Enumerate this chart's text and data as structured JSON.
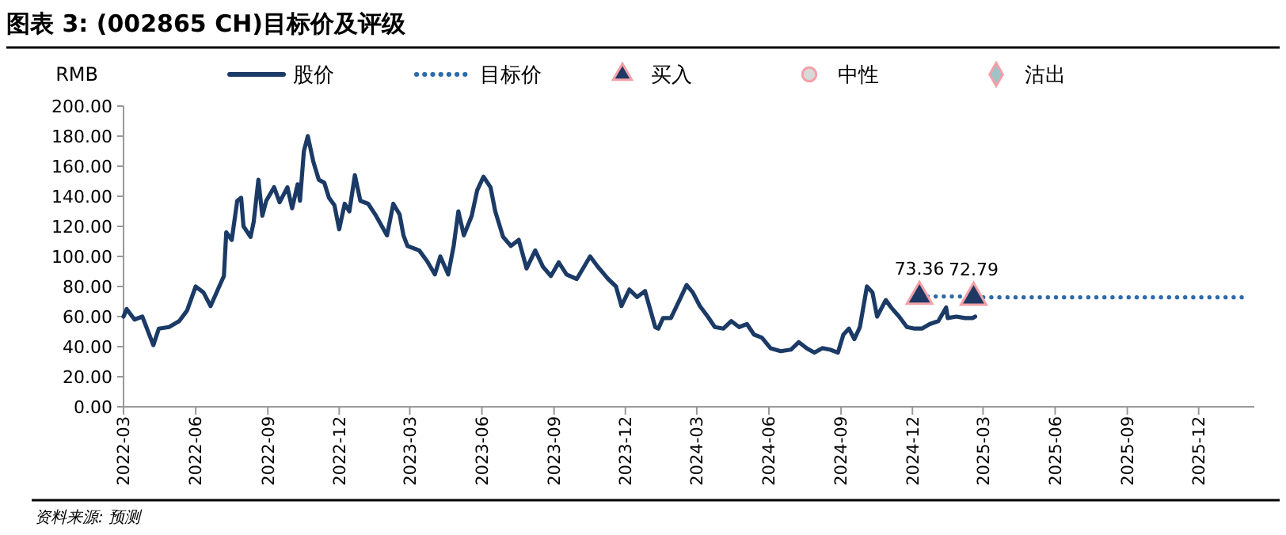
{
  "chart_data": {
    "type": "line",
    "title": "图表 3: (002865 CH)目标价及评级",
    "ylabel": "RMB",
    "annotations": [
      "资料来源: 预测"
    ],
    "xlim": [
      "2022-03-01",
      "2026-02-10"
    ],
    "xticks": [
      "2022-03",
      "2022-06",
      "2022-09",
      "2022-12",
      "2023-03",
      "2023-06",
      "2023-09",
      "2023-12",
      "2024-03",
      "2024-06",
      "2024-09",
      "2024-12",
      "2025-03",
      "2025-06",
      "2025-09",
      "2025-12"
    ],
    "ylim": [
      0,
      200
    ],
    "yticks": [
      {
        "value": 0,
        "label": "0.00"
      },
      {
        "value": 20,
        "label": "20.00"
      },
      {
        "value": 40,
        "label": "40.00"
      },
      {
        "value": 60,
        "label": "60.00"
      },
      {
        "value": 80,
        "label": "80.00"
      },
      {
        "value": 100,
        "label": "100.00"
      },
      {
        "value": 120,
        "label": "120.00"
      },
      {
        "value": 140,
        "label": "140.00"
      },
      {
        "value": 160,
        "label": "160.00"
      },
      {
        "value": 180,
        "label": "180.00"
      },
      {
        "value": 200,
        "label": "200.00"
      }
    ],
    "legend": "top",
    "grid": false,
    "series": [
      {
        "name": "股价",
        "color": "#1b3a66",
        "line_style": "solid",
        "x": [
          "2022-03-01",
          "2022-03-05",
          "2022-03-15",
          "2022-03-25",
          "2022-04-08",
          "2022-04-15",
          "2022-04-28",
          "2022-05-11",
          "2022-05-21",
          "2022-06-01",
          "2022-06-11",
          "2022-06-20",
          "2022-07-01",
          "2022-07-07",
          "2022-07-10",
          "2022-07-17",
          "2022-07-24",
          "2022-07-29",
          "2022-08-01",
          "2022-08-10",
          "2022-08-14",
          "2022-08-20",
          "2022-08-25",
          "2022-08-30",
          "2022-09-09",
          "2022-09-16",
          "2022-09-26",
          "2022-10-02",
          "2022-10-09",
          "2022-10-12",
          "2022-10-17",
          "2022-10-22",
          "2022-10-29",
          "2022-11-05",
          "2022-11-12",
          "2022-11-18",
          "2022-11-25",
          "2022-12-01",
          "2022-12-08",
          "2022-12-14",
          "2022-12-21",
          "2022-12-28",
          "2023-01-07",
          "2023-01-17",
          "2023-01-31",
          "2023-02-08",
          "2023-02-16",
          "2023-02-21",
          "2023-02-26",
          "2023-03-13",
          "2023-03-23",
          "2023-04-02",
          "2023-04-09",
          "2023-04-19",
          "2023-04-26",
          "2023-05-02",
          "2023-05-09",
          "2023-05-19",
          "2023-05-26",
          "2023-06-03",
          "2023-06-12",
          "2023-06-18",
          "2023-06-28",
          "2023-07-08",
          "2023-07-18",
          "2023-07-28",
          "2023-08-08",
          "2023-08-18",
          "2023-08-28",
          "2023-09-07",
          "2023-09-17",
          "2023-09-30",
          "2023-10-17",
          "2023-10-27",
          "2023-11-09",
          "2023-11-19",
          "2023-11-26",
          "2023-12-06",
          "2023-12-16",
          "2023-12-26",
          "2024-01-08",
          "2024-01-12",
          "2024-01-18",
          "2024-01-28",
          "2024-02-08",
          "2024-02-17",
          "2024-02-25",
          "2024-03-05",
          "2024-03-15",
          "2024-03-24",
          "2024-04-04",
          "2024-04-14",
          "2024-04-24",
          "2024-05-04",
          "2024-05-13",
          "2024-05-23",
          "2024-06-03",
          "2024-06-16",
          "2024-06-29",
          "2024-07-09",
          "2024-07-19",
          "2024-07-29",
          "2024-08-08",
          "2024-08-18",
          "2024-08-28",
          "2024-09-04",
          "2024-09-11",
          "2024-09-18",
          "2024-09-25",
          "2024-10-04",
          "2024-10-11",
          "2024-10-17",
          "2024-10-28",
          "2024-11-04",
          "2024-11-14",
          "2024-11-24",
          "2024-12-04",
          "2024-12-13",
          "2024-12-23",
          "2025-01-03",
          "2025-01-13",
          "2025-01-15",
          "2025-01-26",
          "2025-02-06",
          "2025-02-16",
          "2025-02-19"
        ],
        "values": [
          60,
          65,
          58,
          60,
          41,
          52,
          53,
          57,
          64,
          80,
          76,
          67,
          80,
          87,
          116,
          111,
          137,
          139,
          120,
          113,
          123,
          151,
          127,
          137,
          146,
          136,
          146,
          132,
          148,
          137,
          170,
          180,
          163,
          151,
          149,
          139,
          134,
          118,
          135,
          130,
          154,
          137,
          135,
          127,
          114,
          135,
          128,
          114,
          107,
          104,
          97,
          88,
          100,
          88,
          107,
          130,
          114,
          127,
          144,
          153,
          146,
          130,
          113,
          107,
          111,
          92,
          104,
          93,
          87,
          96,
          88,
          85,
          100,
          93,
          85,
          80,
          67,
          78,
          73,
          77,
          53,
          52,
          59,
          59,
          71,
          81,
          76,
          67,
          60,
          53,
          52,
          57,
          53,
          55,
          48,
          46,
          39,
          37,
          38,
          43,
          39,
          36,
          39,
          38,
          36,
          48,
          52,
          45,
          53,
          80,
          76,
          60,
          71,
          66,
          60,
          53,
          52,
          52,
          55,
          57,
          66,
          59,
          60,
          59,
          59,
          60
        ]
      },
      {
        "name": "目标价",
        "type": "step",
        "color": "#2e6aa8",
        "line_style": "dotted",
        "x": [
          "2024-12-10",
          "2025-02-17",
          "2026-01-25"
        ],
        "values": [
          73.4,
          72.8,
          72.8
        ]
      },
      {
        "name": "买入",
        "type": "scatter",
        "marker": "triangle",
        "color": "#1f3864",
        "x": [
          "2024-12-10",
          "2025-02-17"
        ],
        "values": [
          73.36,
          72.79
        ],
        "value_labels": [
          "73.36",
          "72.79"
        ]
      },
      {
        "name": "中性",
        "type": "scatter",
        "marker": "circle",
        "color": "#d9d9d9"
      },
      {
        "name": "沽出",
        "type": "scatter",
        "marker": "diamond",
        "color": "#9dc3c9"
      }
    ]
  }
}
